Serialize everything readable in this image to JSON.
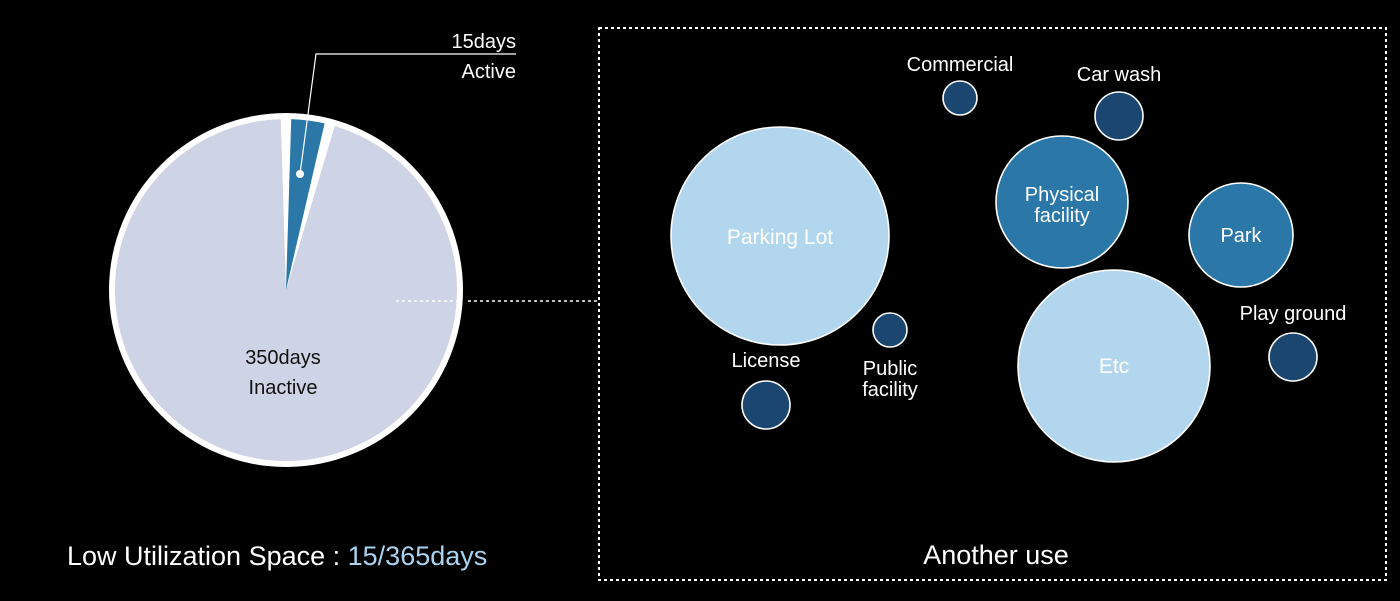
{
  "colors": {
    "background": "#000000",
    "inactive_slice": "#cfd3e6",
    "active_slice": "#2a77a8",
    "pie_border": "#ffffff",
    "text_light": "#ffffff",
    "text_dark": "#111111",
    "accent_text": "#a9d3ee",
    "bubble_light": "#b2d6ee",
    "bubble_mid": "#2a77a8",
    "bubble_dark": "#1b4670"
  },
  "caption": {
    "prefix": "Low Utilization Space : ",
    "highlight": "15/365days"
  },
  "panel": {
    "title": "Another use"
  },
  "chart_data": [
    {
      "type": "pie",
      "title": "",
      "total": 365,
      "slices": [
        {
          "key": "active",
          "value": 15,
          "value_label": "15days",
          "label": "Active",
          "color": "#2a77a8"
        },
        {
          "key": "inactive",
          "value": 350,
          "value_label": "350days",
          "label": "Inactive",
          "color": "#cfd3e6"
        }
      ]
    },
    {
      "type": "bubble",
      "title": "Another use",
      "bubbles": [
        {
          "key": "commercial",
          "label": [
            "Commercial"
          ],
          "size": "small",
          "color": "#1b4670"
        },
        {
          "key": "car-wash",
          "label": [
            "Car wash"
          ],
          "size": "small",
          "color": "#1b4670"
        },
        {
          "key": "parking-lot",
          "label": [
            "Parking Lot"
          ],
          "size": "large",
          "color": "#b2d6ee"
        },
        {
          "key": "physical-facility",
          "label": [
            "Physical",
            "facility"
          ],
          "size": "medium",
          "color": "#2a77a8"
        },
        {
          "key": "park",
          "label": [
            "Park"
          ],
          "size": "medium",
          "color": "#2a77a8"
        },
        {
          "key": "license",
          "label": [
            "License"
          ],
          "size": "small",
          "color": "#1b4670"
        },
        {
          "key": "public-facility",
          "label": [
            "Public",
            "facility"
          ],
          "size": "small",
          "color": "#1b4670"
        },
        {
          "key": "etc",
          "label": [
            "Etc"
          ],
          "size": "large",
          "color": "#b2d6ee"
        },
        {
          "key": "play-ground",
          "label": [
            "Play ground"
          ],
          "size": "small",
          "color": "#1b4670"
        }
      ]
    }
  ]
}
